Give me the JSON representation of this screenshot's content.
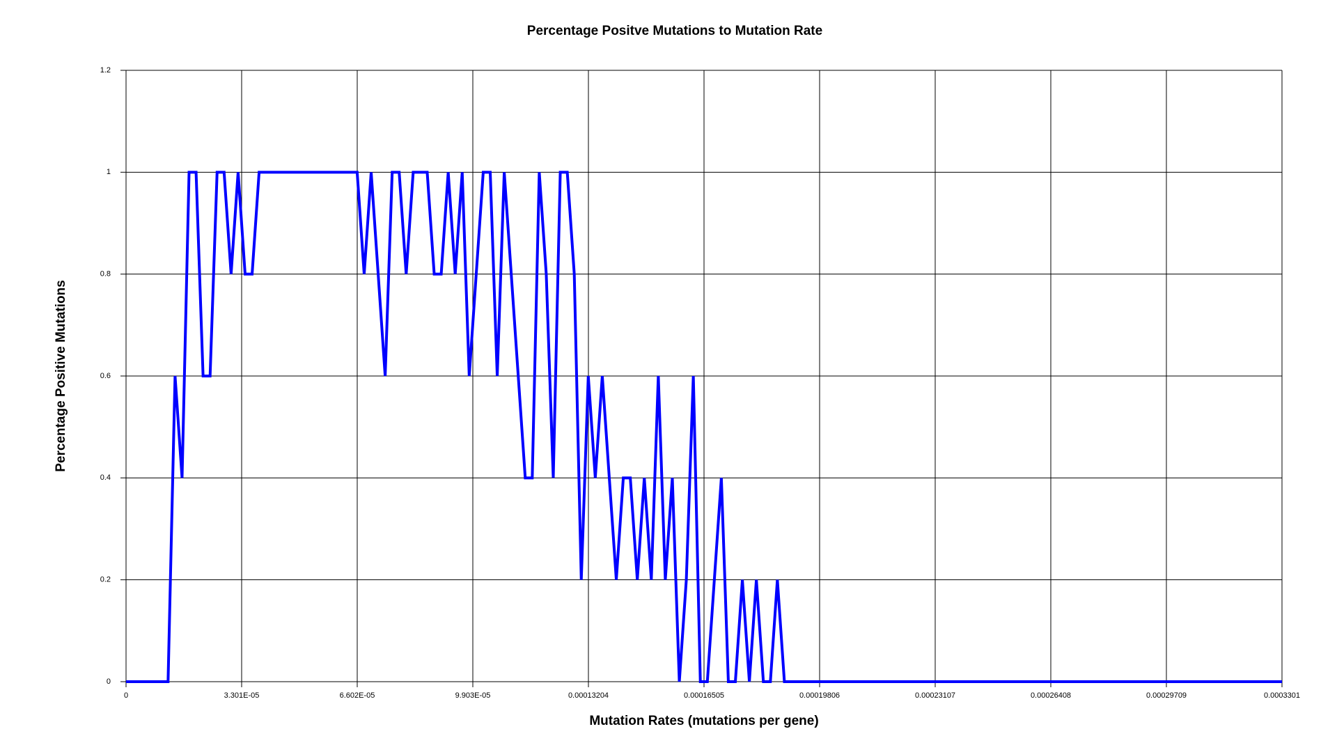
{
  "chart_data": {
    "type": "line",
    "title": "Percentage Positve Mutations to Mutation Rate",
    "x_label": "Mutation Rates (mutations per gene)",
    "y_label": "Percentage Positive Mutations",
    "x": [
      0,
      1.2e-05,
      1.4e-05,
      1.6e-05,
      1.8e-05,
      2e-05,
      2.2e-05,
      2.4e-05,
      2.6e-05,
      2.8e-05,
      3e-05,
      3.2e-05,
      3.4e-05,
      3.6e-05,
      3.8e-05,
      4e-05,
      4.2e-05,
      4.4e-05,
      4.6e-05,
      4.8e-05,
      5e-05,
      5.2e-05,
      5.4e-05,
      5.6e-05,
      5.8e-05,
      6e-05,
      6.2e-05,
      6.4e-05,
      6.6e-05,
      6.8e-05,
      7e-05,
      7.2e-05,
      7.4e-05,
      7.6e-05,
      7.8e-05,
      8e-05,
      8.2e-05,
      8.4e-05,
      8.6e-05,
      8.8e-05,
      9e-05,
      9.2e-05,
      9.4e-05,
      9.6e-05,
      9.8e-05,
      0.0001,
      0.000102,
      0.000104,
      0.000106,
      0.000108,
      0.00011,
      0.000112,
      0.000114,
      0.000116,
      0.000118,
      0.00012,
      0.000122,
      0.000124,
      0.000126,
      0.000128,
      0.00013,
      0.000132,
      0.000134,
      0.000136,
      0.000138,
      0.00014,
      0.000142,
      0.000144,
      0.000146,
      0.000148,
      0.00015,
      0.000152,
      0.000154,
      0.000156,
      0.000158,
      0.00016,
      0.000162,
      0.000164,
      0.000166,
      0.000168,
      0.00017,
      0.000172,
      0.000174,
      0.000176,
      0.000178,
      0.00018,
      0.000182,
      0.000184,
      0.000186,
      0.000188,
      0.0003301
    ],
    "values": [
      0,
      0,
      0.6,
      0.4,
      1,
      1,
      0.6,
      0.6,
      1,
      1,
      0.8,
      1,
      0.8,
      0.8,
      1,
      1,
      1,
      1,
      1,
      1,
      1,
      1,
      1,
      1,
      1,
      1,
      1,
      1,
      1,
      0.8,
      1,
      0.8,
      0.6,
      1,
      1,
      0.8,
      1,
      1,
      1,
      0.8,
      0.8,
      1,
      0.8,
      1,
      0.6,
      0.8,
      1,
      1,
      0.6,
      1,
      0.8,
      0.6,
      0.4,
      0.4,
      1,
      0.8,
      0.4,
      1,
      1,
      0.8,
      0.2,
      0.6,
      0.4,
      0.6,
      0.4,
      0.2,
      0.4,
      0.4,
      0.2,
      0.4,
      0.2,
      0.6,
      0.2,
      0.4,
      0,
      0.2,
      0.6,
      0,
      0,
      0.2,
      0.4,
      0,
      0,
      0.2,
      0,
      0.2,
      0,
      0,
      0.2,
      0,
      0
    ],
    "color": "#0000ff",
    "xlim": [
      0,
      0.0003301
    ],
    "xticks": [
      0,
      {
        "value": 3.301e-05,
        "label": "3.301E-05"
      },
      {
        "value": 6.602e-05,
        "label": "6.602E-05"
      },
      {
        "value": 9.903e-05,
        "label": "9.903E-05"
      },
      0.00013204,
      0.00016505,
      0.00019806,
      0.00023107,
      0.00026408,
      0.00029709,
      0.0003301
    ],
    "ylim": [
      0,
      1.2
    ],
    "yticks": [
      0,
      0.2,
      0.4,
      0.6,
      0.8,
      1,
      1.2
    ],
    "grid": true
  }
}
